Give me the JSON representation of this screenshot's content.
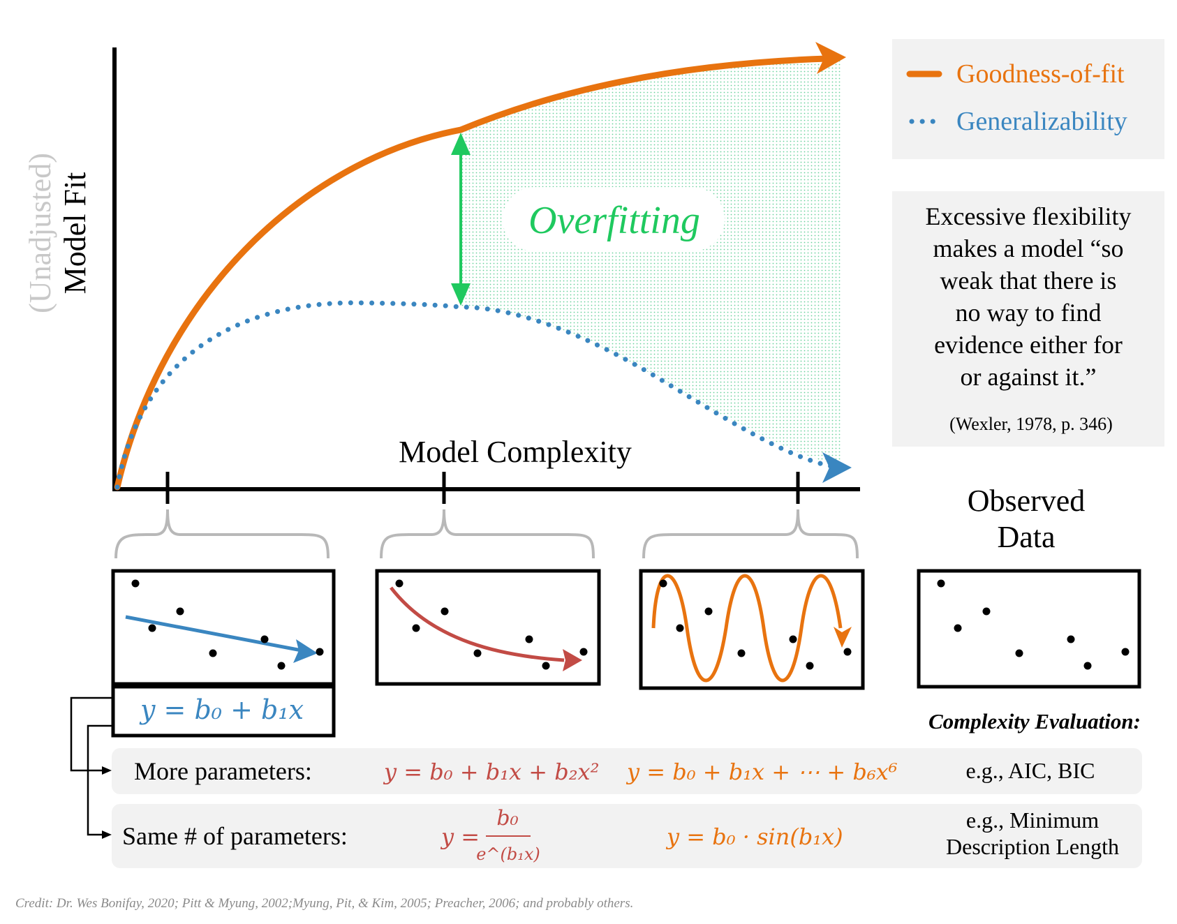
{
  "colors": {
    "orange": "#E8730F",
    "blue": "#3A86C0",
    "green": "#1FC95F",
    "red": "#C24B45",
    "gray_text": "#C8C8C8",
    "panel_bg": "#F2F2F2",
    "brace": "#B8B8B8"
  },
  "axes": {
    "y_label_adjust": "(Unadjusted)",
    "y_label": "Model Fit",
    "x_label": "Model Complexity"
  },
  "overfitting_label": "Overfitting",
  "legend": {
    "items": [
      {
        "label": "Goodness-of-fit",
        "color": "#E8730F",
        "line_style": "solid"
      },
      {
        "label": "Generalizability",
        "color": "#3A86C0",
        "line_style": "dotted"
      }
    ]
  },
  "quote": {
    "lines": [
      "Excessive flexibility",
      "makes a model “so",
      "weak that there is",
      "no way to find",
      "evidence either for",
      "or against it.”"
    ],
    "citation": "(Wexler, 1978, p. 346)"
  },
  "observed_data_lines": [
    "Observed",
    "Data"
  ],
  "linear_equation": "y = b₀ + b₁x",
  "complexity_evaluation_title": "Complexity Evaluation:",
  "rows": [
    {
      "label": "More parameters:",
      "eq_red": "y = b₀ + b₁x + b₂x²",
      "eq_orange": "y = b₀ + b₁x + ⋯ + b₆x⁶",
      "evaluation": [
        "e.g., AIC, BIC"
      ]
    },
    {
      "label": "Same # of parameters:",
      "eq_red_lhs": "y =",
      "eq_red_num": "b₀",
      "eq_red_den": "e^(b₁x)",
      "eq_orange": "y = b₀ · sin(b₁x)",
      "evaluation": [
        "e.g., Minimum",
        "Description Length"
      ]
    }
  ],
  "credit": "Credit: Dr. Wes Bonifay, 2020; Pitt & Myung, 2002;Myung, Pit, & Kim, 2005; Preacher, 2006; and probably others."
}
